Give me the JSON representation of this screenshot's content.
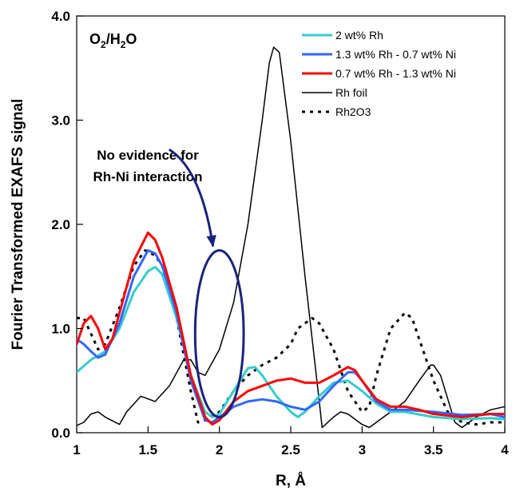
{
  "chart_data": {
    "type": "line",
    "title": "",
    "xlabel": "R, Å",
    "ylabel": "Fourier Transformed EXAFS signal",
    "xlim": [
      1,
      4
    ],
    "ylim": [
      0,
      4
    ],
    "x_ticks": [
      {
        "value": 1,
        "label": "1"
      },
      {
        "value": 1.5,
        "label": "1.5"
      },
      {
        "value": 2,
        "label": "2"
      },
      {
        "value": 2.5,
        "label": "2.5"
      },
      {
        "value": 3,
        "label": "3"
      },
      {
        "value": 3.5,
        "label": "3.5"
      },
      {
        "value": 4,
        "label": "4"
      }
    ],
    "y_ticks": [
      {
        "value": 0,
        "label": "0.0"
      },
      {
        "value": 1,
        "label": "1.0"
      },
      {
        "value": 2,
        "label": "2.0"
      },
      {
        "value": 3,
        "label": "3.0"
      },
      {
        "value": 4,
        "label": "4.0"
      }
    ],
    "grid": false,
    "legend_position": "top-right",
    "condition": {
      "main": "O",
      "sub1": "2",
      "mid": "/H",
      "sub2": "2",
      "tail": "O"
    },
    "annotation": {
      "lines": [
        "No evidence for",
        "Rh-Ni interaction"
      ],
      "ellipse": {
        "cx": 2.0,
        "cy": 0.95,
        "rx": 0.17,
        "ry": 0.8
      },
      "arrow_from": [
        1.9,
        2.78
      ],
      "arrow_to": [
        2.0,
        1.82
      ]
    },
    "series": [
      {
        "name": "2 wt% Rh",
        "color": "#33cccc",
        "dash": "solid",
        "width": 3,
        "points": [
          [
            1.0,
            0.58
          ],
          [
            1.1,
            0.7
          ],
          [
            1.2,
            0.78
          ],
          [
            1.3,
            1.0
          ],
          [
            1.4,
            1.35
          ],
          [
            1.5,
            1.55
          ],
          [
            1.55,
            1.59
          ],
          [
            1.6,
            1.52
          ],
          [
            1.7,
            1.1
          ],
          [
            1.8,
            0.55
          ],
          [
            1.9,
            0.2
          ],
          [
            1.95,
            0.15
          ],
          [
            2.0,
            0.18
          ],
          [
            2.1,
            0.4
          ],
          [
            2.2,
            0.62
          ],
          [
            2.25,
            0.63
          ],
          [
            2.3,
            0.55
          ],
          [
            2.4,
            0.35
          ],
          [
            2.5,
            0.2
          ],
          [
            2.55,
            0.15
          ],
          [
            2.6,
            0.2
          ],
          [
            2.7,
            0.35
          ],
          [
            2.8,
            0.48
          ],
          [
            2.9,
            0.5
          ],
          [
            3.0,
            0.4
          ],
          [
            3.1,
            0.28
          ],
          [
            3.2,
            0.2
          ],
          [
            3.3,
            0.2
          ],
          [
            3.5,
            0.15
          ],
          [
            3.7,
            0.13
          ],
          [
            3.9,
            0.14
          ],
          [
            4.0,
            0.13
          ]
        ]
      },
      {
        "name": "1.3 wt% Rh - 0.7 wt% Ni",
        "color": "#3366ff",
        "dash": "solid",
        "width": 3,
        "points": [
          [
            1.0,
            0.9
          ],
          [
            1.05,
            0.85
          ],
          [
            1.1,
            0.78
          ],
          [
            1.15,
            0.72
          ],
          [
            1.2,
            0.75
          ],
          [
            1.3,
            1.05
          ],
          [
            1.4,
            1.5
          ],
          [
            1.5,
            1.75
          ],
          [
            1.55,
            1.72
          ],
          [
            1.6,
            1.6
          ],
          [
            1.7,
            1.15
          ],
          [
            1.8,
            0.5
          ],
          [
            1.9,
            0.12
          ],
          [
            1.95,
            0.1
          ],
          [
            2.0,
            0.15
          ],
          [
            2.1,
            0.25
          ],
          [
            2.2,
            0.3
          ],
          [
            2.3,
            0.32
          ],
          [
            2.4,
            0.3
          ],
          [
            2.5,
            0.25
          ],
          [
            2.6,
            0.22
          ],
          [
            2.7,
            0.3
          ],
          [
            2.8,
            0.45
          ],
          [
            2.9,
            0.58
          ],
          [
            2.95,
            0.58
          ],
          [
            3.0,
            0.5
          ],
          [
            3.1,
            0.3
          ],
          [
            3.2,
            0.22
          ],
          [
            3.3,
            0.22
          ],
          [
            3.5,
            0.2
          ],
          [
            3.7,
            0.17
          ],
          [
            3.9,
            0.18
          ],
          [
            4.0,
            0.15
          ]
        ]
      },
      {
        "name": "0.7 wt% Rh - 1.3 wt% Ni",
        "color": "#ff0000",
        "dash": "solid",
        "width": 3,
        "points": [
          [
            1.0,
            0.85
          ],
          [
            1.05,
            1.05
          ],
          [
            1.1,
            1.12
          ],
          [
            1.15,
            1.0
          ],
          [
            1.2,
            0.8
          ],
          [
            1.25,
            0.9
          ],
          [
            1.3,
            1.15
          ],
          [
            1.4,
            1.65
          ],
          [
            1.5,
            1.92
          ],
          [
            1.55,
            1.85
          ],
          [
            1.6,
            1.68
          ],
          [
            1.7,
            1.2
          ],
          [
            1.8,
            0.55
          ],
          [
            1.9,
            0.15
          ],
          [
            1.95,
            0.08
          ],
          [
            2.0,
            0.12
          ],
          [
            2.1,
            0.3
          ],
          [
            2.2,
            0.4
          ],
          [
            2.3,
            0.45
          ],
          [
            2.4,
            0.5
          ],
          [
            2.5,
            0.52
          ],
          [
            2.6,
            0.48
          ],
          [
            2.7,
            0.48
          ],
          [
            2.8,
            0.55
          ],
          [
            2.9,
            0.63
          ],
          [
            2.95,
            0.6
          ],
          [
            3.0,
            0.5
          ],
          [
            3.1,
            0.32
          ],
          [
            3.2,
            0.25
          ],
          [
            3.3,
            0.25
          ],
          [
            3.4,
            0.22
          ],
          [
            3.5,
            0.18
          ],
          [
            3.7,
            0.15
          ],
          [
            3.9,
            0.18
          ],
          [
            4.0,
            0.18
          ]
        ]
      },
      {
        "name": "Rh foil",
        "color": "#000000",
        "dash": "solid",
        "width": 1.5,
        "points": [
          [
            1.0,
            0.07
          ],
          [
            1.05,
            0.1
          ],
          [
            1.1,
            0.18
          ],
          [
            1.15,
            0.2
          ],
          [
            1.2,
            0.15
          ],
          [
            1.3,
            0.08
          ],
          [
            1.35,
            0.2
          ],
          [
            1.45,
            0.35
          ],
          [
            1.55,
            0.3
          ],
          [
            1.65,
            0.45
          ],
          [
            1.75,
            0.7
          ],
          [
            1.8,
            0.7
          ],
          [
            1.85,
            0.58
          ],
          [
            1.9,
            0.55
          ],
          [
            2.0,
            0.8
          ],
          [
            2.1,
            1.25
          ],
          [
            2.2,
            2.0
          ],
          [
            2.3,
            3.0
          ],
          [
            2.35,
            3.55
          ],
          [
            2.38,
            3.7
          ],
          [
            2.42,
            3.65
          ],
          [
            2.5,
            2.8
          ],
          [
            2.6,
            1.5
          ],
          [
            2.7,
            0.3
          ],
          [
            2.72,
            0.05
          ],
          [
            2.8,
            0.15
          ],
          [
            2.85,
            0.2
          ],
          [
            2.9,
            0.18
          ],
          [
            3.0,
            0.08
          ],
          [
            3.05,
            0.05
          ],
          [
            3.1,
            0.1
          ],
          [
            3.2,
            0.2
          ],
          [
            3.3,
            0.3
          ],
          [
            3.4,
            0.5
          ],
          [
            3.48,
            0.65
          ],
          [
            3.5,
            0.65
          ],
          [
            3.55,
            0.55
          ],
          [
            3.65,
            0.1
          ],
          [
            3.7,
            0.05
          ],
          [
            3.8,
            0.15
          ],
          [
            3.9,
            0.22
          ],
          [
            4.0,
            0.25
          ]
        ]
      },
      {
        "name": "Rh2O3",
        "color": "#000000",
        "dash": "dotted",
        "width": 3,
        "points": [
          [
            1.0,
            1.1
          ],
          [
            1.05,
            1.1
          ],
          [
            1.1,
            0.95
          ],
          [
            1.15,
            0.8
          ],
          [
            1.2,
            0.85
          ],
          [
            1.3,
            1.2
          ],
          [
            1.4,
            1.6
          ],
          [
            1.48,
            1.75
          ],
          [
            1.55,
            1.7
          ],
          [
            1.6,
            1.6
          ],
          [
            1.7,
            1.1
          ],
          [
            1.8,
            0.4
          ],
          [
            1.85,
            0.1
          ],
          [
            1.9,
            0.12
          ],
          [
            2.0,
            0.2
          ],
          [
            2.1,
            0.4
          ],
          [
            2.2,
            0.55
          ],
          [
            2.3,
            0.65
          ],
          [
            2.4,
            0.72
          ],
          [
            2.5,
            0.85
          ],
          [
            2.55,
            1.0
          ],
          [
            2.65,
            1.1
          ],
          [
            2.7,
            1.05
          ],
          [
            2.8,
            0.8
          ],
          [
            2.9,
            0.4
          ],
          [
            3.0,
            0.2
          ],
          [
            3.05,
            0.25
          ],
          [
            3.1,
            0.55
          ],
          [
            3.2,
            1.0
          ],
          [
            3.3,
            1.15
          ],
          [
            3.35,
            1.1
          ],
          [
            3.4,
            0.9
          ],
          [
            3.5,
            0.5
          ],
          [
            3.6,
            0.2
          ],
          [
            3.7,
            0.1
          ],
          [
            3.8,
            0.08
          ],
          [
            3.9,
            0.1
          ],
          [
            4.0,
            0.1
          ]
        ]
      }
    ]
  }
}
